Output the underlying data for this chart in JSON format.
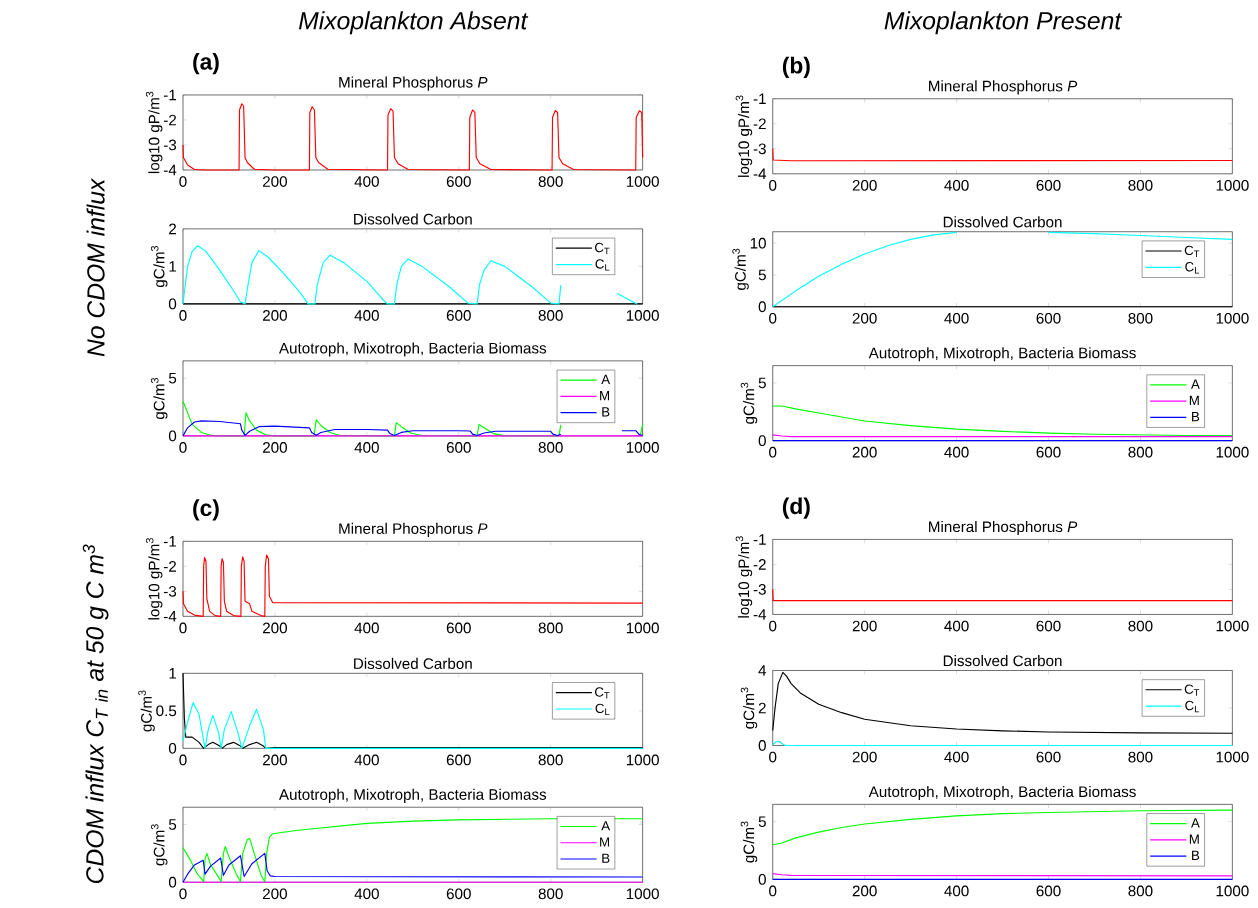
{
  "chart_data": [
    {
      "type": "line",
      "title": "Mineral Phosphorus *P*",
      "ylabel": "log10 gP/m$^{3}$",
      "xlim": [
        0,
        1000
      ],
      "xticks": [
        0,
        200,
        400,
        600,
        800,
        1000
      ],
      "ylim": [
        -4,
        -1
      ],
      "yticks": [
        -4,
        -3,
        -2,
        -1
      ],
      "annotations": [
        "Mixoplankton Absent",
        "\\mathit{No\\ CDOM\\ influx}",
        "(a)"
      ],
      "series": [
        {
          "color": "#ff0000",
          "x": [
            0,
            1,
            10,
            25,
            50,
            122,
            123,
            128,
            132,
            135,
            140,
            155,
            200,
            275,
            276,
            281,
            286,
            289,
            295,
            315,
            445,
            446,
            452,
            457,
            460,
            468,
            490,
            623,
            624,
            630,
            635,
            638,
            646,
            670,
            803,
            804,
            810,
            815,
            818,
            826,
            850,
            985,
            986,
            993,
            998,
            1000
          ],
          "values": [
            -3.0,
            -3.5,
            -3.8,
            -3.98,
            -4,
            -4,
            -1.6,
            -1.35,
            -1.45,
            -3.5,
            -3.7,
            -3.97,
            -4,
            -4,
            -1.7,
            -1.47,
            -1.6,
            -3.5,
            -3.7,
            -3.97,
            -4,
            -1.8,
            -1.55,
            -1.65,
            -3.5,
            -3.75,
            -3.98,
            -4,
            -1.9,
            -1.6,
            -1.7,
            -3.5,
            -3.75,
            -3.98,
            -4,
            -1.9,
            -1.62,
            -1.7,
            -3.5,
            -3.75,
            -3.98,
            -4,
            -1.9,
            -1.63,
            -1.7,
            -3.5
          ]
        }
      ]
    },
    {
      "type": "line",
      "title": "Dissolved Carbon",
      "ylabel": "gC/m$^{3}$",
      "xlim": [
        0,
        1000
      ],
      "xticks": [
        0,
        200,
        400,
        600,
        800,
        1000
      ],
      "ylim": [
        0,
        2
      ],
      "yticks": [
        0,
        1,
        2
      ],
      "legend": "top right",
      "series": [
        {
          "name": "C$_{T}$",
          "color": "#000000",
          "x": [
            0,
            1000
          ],
          "values": [
            0,
            0
          ]
        },
        {
          "name": "C$_{L}$",
          "color": "#00ffff",
          "x": [
            0,
            10,
            20,
            32,
            50,
            80,
            110,
            125,
            135,
            140,
            150,
            165,
            185,
            220,
            255,
            272,
            287,
            292,
            305,
            320,
            350,
            400,
            440,
            445,
            460,
            465,
            475,
            490,
            520,
            580,
            620,
            640,
            645,
            655,
            670,
            700,
            760,
            800,
            818,
            822,
            900,
            945,
            960,
            975,
            988
          ],
          "values": [
            0,
            1.0,
            1.4,
            1.55,
            1.4,
            0.9,
            0.35,
            0.05,
            0,
            0.4,
            1.1,
            1.42,
            1.25,
            0.8,
            0.3,
            0,
            0,
            0.5,
            1.1,
            1.3,
            1.1,
            0.6,
            0.05,
            0,
            0,
            0.5,
            1.0,
            1.2,
            1.0,
            0.45,
            0.02,
            0,
            0.5,
            0.9,
            1.15,
            1.0,
            0.45,
            0.02,
            0,
            0.5,
            null,
            0.28,
            0.18,
            0.08,
            0
          ]
        }
      ]
    },
    {
      "type": "line",
      "title": "Autotroph, Mixotroph, Bacteria Biomass",
      "ylabel": "gC/m$^{3}$",
      "xlim": [
        0,
        1000
      ],
      "xticks": [
        0,
        200,
        400,
        600,
        800,
        1000
      ],
      "ylim": [
        0,
        6.5
      ],
      "yticks": [
        0,
        5
      ],
      "legend": "top right",
      "series": [
        {
          "name": "A",
          "color": "#00ff00",
          "x": [
            0,
            10,
            20,
            40,
            60,
            100,
            133,
            137,
            145,
            160,
            180,
            200,
            285,
            290,
            300,
            320,
            340,
            460,
            464,
            475,
            495,
            520,
            640,
            644,
            655,
            675,
            700,
            818,
            822,
            900,
            995,
            1000
          ],
          "values": [
            3.0,
            2.0,
            1.0,
            0.3,
            0.05,
            0,
            0,
            2.0,
            1.3,
            0.5,
            0.1,
            0,
            0,
            1.4,
            0.9,
            0.3,
            0.05,
            0,
            1.15,
            0.8,
            0.25,
            0.03,
            0,
            1.0,
            0.7,
            0.2,
            0.02,
            0,
            0.95,
            null,
            0.05,
            1.0
          ]
        },
        {
          "name": "M",
          "color": "#ff00ff",
          "x": [
            0,
            1000
          ],
          "values": [
            0,
            0
          ]
        },
        {
          "name": "B",
          "color": "#0000ff",
          "x": [
            0,
            10,
            25,
            40,
            80,
            125,
            128,
            135,
            145,
            165,
            200,
            275,
            280,
            290,
            300,
            330,
            400,
            445,
            450,
            460,
            475,
            500,
            600,
            625,
            630,
            640,
            655,
            680,
            800,
            805,
            815,
            822,
            900,
            955,
            985,
            993,
            1000
          ],
          "values": [
            0,
            0.7,
            1.2,
            1.3,
            1.25,
            1.05,
            0.5,
            0.05,
            0.4,
            0.8,
            0.85,
            0.7,
            0.3,
            0.05,
            0.3,
            0.55,
            0.55,
            0.5,
            0.2,
            0.03,
            0.3,
            0.45,
            0.45,
            0.42,
            0.15,
            0.03,
            0.25,
            0.4,
            0.4,
            0.15,
            0.03,
            0.15,
            null,
            0.45,
            0.45,
            0.1,
            0.05
          ]
        }
      ]
    },
    {
      "type": "line",
      "title": "Mineral Phosphorus *P*",
      "ylabel": "log10 gP/m$^{3}$",
      "xlim": [
        0,
        1000
      ],
      "xticks": [
        0,
        200,
        400,
        600,
        800,
        1000
      ],
      "ylim": [
        -4,
        -1
      ],
      "yticks": [
        -4,
        -3,
        -2,
        -1
      ],
      "annotations": [
        "Mixoplankton Present",
        "(b)"
      ],
      "series": [
        {
          "color": "#ff0000",
          "x": [
            0,
            1,
            40,
            1000
          ],
          "values": [
            -3.0,
            -3.45,
            -3.48,
            -3.47
          ]
        }
      ]
    },
    {
      "type": "line",
      "title": "Dissolved Carbon",
      "ylabel": "gC/m$^{3}$",
      "xlim": [
        0,
        1000
      ],
      "xticks": [
        0,
        200,
        400,
        600,
        800,
        1000
      ],
      "ylim": [
        0,
        11.8
      ],
      "yticks": [
        0,
        5,
        10
      ],
      "legend": "top right",
      "series": [
        {
          "name": "C$_{T}$",
          "color": "#000000",
          "x": [
            0,
            1000
          ],
          "values": [
            0,
            0
          ]
        },
        {
          "name": "C$_{L}$",
          "color": "#00ffff",
          "x": [
            0,
            50,
            100,
            150,
            200,
            250,
            300,
            350,
            400,
            450,
            550,
            600,
            700,
            800,
            900,
            1000
          ],
          "values": [
            0,
            2.5,
            4.8,
            6.7,
            8.3,
            9.6,
            10.6,
            11.3,
            11.7,
            null,
            null,
            11.7,
            11.5,
            11.2,
            10.9,
            10.6
          ]
        }
      ]
    },
    {
      "type": "line",
      "title": "Autotroph, Mixotroph, Bacteria Biomass",
      "ylabel": "gC/m$^{3}$",
      "xlim": [
        0,
        1000
      ],
      "xticks": [
        0,
        200,
        400,
        600,
        800,
        1000
      ],
      "ylim": [
        0,
        6.5
      ],
      "yticks": [
        0,
        5
      ],
      "legend": "top right",
      "series": [
        {
          "name": "A",
          "color": "#00ff00",
          "x": [
            0,
            20,
            50,
            100,
            200,
            300,
            400,
            500,
            600,
            700,
            800,
            900,
            1000
          ],
          "values": [
            3.0,
            3.0,
            2.75,
            2.4,
            1.7,
            1.3,
            1.0,
            0.8,
            0.65,
            0.55,
            0.5,
            0.45,
            0.45
          ]
        },
        {
          "name": "M",
          "color": "#ff00ff",
          "x": [
            0,
            20,
            40,
            1000
          ],
          "values": [
            0.5,
            0.4,
            0.35,
            0.35
          ]
        },
        {
          "name": "B",
          "color": "#0000ff",
          "x": [
            0,
            1000
          ],
          "values": [
            0,
            0
          ]
        }
      ]
    },
    {
      "type": "line",
      "title": "Mineral Phosphorus *P*",
      "ylabel": "log10 gP/m$^{3}$",
      "xlim": [
        0,
        1000
      ],
      "xticks": [
        0,
        200,
        400,
        600,
        800,
        1000
      ],
      "ylim": [
        -4,
        -1
      ],
      "yticks": [
        -4,
        -3,
        -2,
        -1
      ],
      "annotations": [
        "\\mathit{CDOM\\ influx\\ C_{T\\ in}\\ at\\ 50\\ g\\ C\\ m^{3}}",
        "(c)"
      ],
      "series": [
        {
          "color": "#ff0000",
          "x": [
            0,
            1,
            10,
            25,
            44,
            45,
            47,
            50,
            52,
            58,
            70,
            82,
            83,
            85,
            88,
            90,
            95,
            110,
            126,
            127,
            130,
            133,
            135,
            145,
            150,
            170,
            178,
            179,
            182,
            186,
            188,
            195,
            1000
          ],
          "values": [
            -3.0,
            -3.5,
            -3.8,
            -3.95,
            -4,
            -2.0,
            -1.65,
            -1.8,
            -3.3,
            -3.8,
            -3.97,
            -4,
            -2.0,
            -1.7,
            -1.85,
            -3.4,
            -3.8,
            -3.97,
            -4,
            -2.0,
            -1.62,
            -1.8,
            -3.4,
            -3.5,
            -3.8,
            -3.97,
            -4,
            -2.0,
            -1.55,
            -1.7,
            -3.2,
            -3.45,
            -3.47
          ]
        }
      ]
    },
    {
      "type": "line",
      "title": "Dissolved Carbon",
      "ylabel": "gC/m$^{3}$",
      "xlim": [
        0,
        1000
      ],
      "xticks": [
        0,
        200,
        400,
        600,
        800,
        1000
      ],
      "ylim": [
        0,
        1
      ],
      "yticks": [
        0,
        0.5,
        1
      ],
      "legend": "top right",
      "series": [
        {
          "name": "C$_{T}$",
          "color": "#000000",
          "x": [
            0,
            3,
            6,
            20,
            35,
            45,
            55,
            65,
            80,
            85,
            95,
            110,
            125,
            130,
            145,
            160,
            175,
            180,
            200,
            1000
          ],
          "values": [
            1.0,
            0.4,
            0.15,
            0.15,
            0.08,
            0,
            0.05,
            0.08,
            0.03,
            0,
            0.05,
            0.08,
            0.03,
            0,
            0.05,
            0.08,
            0.03,
            0,
            0.01,
            0.01
          ]
        },
        {
          "name": "C$_{L}$",
          "color": "#00ffff",
          "x": [
            0,
            10,
            22,
            35,
            45,
            48,
            55,
            65,
            78,
            83,
            90,
            105,
            120,
            128,
            145,
            160,
            175,
            180,
            1000
          ],
          "values": [
            0.1,
            0.35,
            0.61,
            0.45,
            0.1,
            0,
            0.25,
            0.44,
            0.2,
            0,
            0.25,
            0.49,
            0.2,
            0,
            0.3,
            0.52,
            0.25,
            0,
            0
          ]
        }
      ]
    },
    {
      "type": "line",
      "title": "Autotroph, Mixotroph, Bacteria Biomass",
      "ylabel": "gC/m$^{3}$",
      "xlim": [
        0,
        1000
      ],
      "xticks": [
        0,
        200,
        400,
        600,
        800,
        1000
      ],
      "ylim": [
        0,
        6.5
      ],
      "yticks": [
        0,
        5
      ],
      "legend": "top right",
      "series": [
        {
          "name": "A",
          "color": "#00ff00",
          "x": [
            0,
            15,
            30,
            45,
            48,
            52,
            60,
            75,
            83,
            88,
            92,
            100,
            115,
            125,
            130,
            140,
            145,
            155,
            170,
            178,
            182,
            188,
            195,
            250,
            300,
            400,
            500,
            600,
            800,
            1000
          ],
          "values": [
            3.0,
            2.0,
            0.8,
            0.05,
            2.0,
            2.5,
            1.5,
            0.6,
            0.05,
            2.5,
            3.1,
            2.2,
            0.8,
            0.05,
            2.5,
            3.7,
            3.8,
            2.5,
            0.6,
            0.05,
            2.5,
            3.9,
            4.2,
            4.5,
            4.7,
            5.1,
            5.3,
            5.4,
            5.5,
            5.5
          ]
        },
        {
          "name": "M",
          "color": "#ff00ff",
          "x": [
            0,
            1000
          ],
          "values": [
            0,
            0
          ]
        },
        {
          "name": "B",
          "color": "#0000ff",
          "x": [
            0,
            10,
            25,
            44,
            48,
            60,
            82,
            88,
            100,
            125,
            133,
            150,
            178,
            183,
            190,
            200,
            1000
          ],
          "values": [
            0,
            0.7,
            1.5,
            1.9,
            0.7,
            1.4,
            2.1,
            0.6,
            1.5,
            2.3,
            0.5,
            1.6,
            2.5,
            1.0,
            0.55,
            0.5,
            0.45
          ]
        }
      ]
    },
    {
      "type": "line",
      "title": "Mineral Phosphorus *P*",
      "ylabel": "log10 gP/m$^{3}$",
      "xlim": [
        0,
        1000
      ],
      "xticks": [
        0,
        200,
        400,
        600,
        800,
        1000
      ],
      "ylim": [
        -4,
        -1
      ],
      "yticks": [
        -4,
        -3,
        -2,
        -1
      ],
      "annotations": [
        "(d)"
      ],
      "series": [
        {
          "color": "#ff0000",
          "x": [
            0,
            1,
            1000
          ],
          "values": [
            -3.0,
            -3.45,
            -3.45
          ]
        }
      ]
    },
    {
      "type": "line",
      "title": "Dissolved Carbon",
      "ylabel": "gC/m$^{3}$",
      "xlim": [
        0,
        1000
      ],
      "xticks": [
        0,
        200,
        400,
        600,
        800,
        1000
      ],
      "ylim": [
        0,
        4
      ],
      "yticks": [
        0,
        2,
        4
      ],
      "legend": "top right",
      "series": [
        {
          "name": "C$_{T}$",
          "color": "#000000",
          "x": [
            0,
            5,
            12,
            22,
            30,
            40,
            60,
            100,
            150,
            200,
            300,
            400,
            500,
            600,
            800,
            1000
          ],
          "values": [
            0.8,
            2.0,
            3.3,
            3.9,
            3.7,
            3.3,
            2.8,
            2.2,
            1.75,
            1.4,
            1.05,
            0.88,
            0.78,
            0.72,
            0.67,
            0.65
          ]
        },
        {
          "name": "C$_{L}$",
          "color": "#00ffff",
          "x": [
            0,
            8,
            15,
            25,
            30,
            1000
          ],
          "values": [
            0.05,
            0.2,
            0.2,
            0.02,
            0,
            0
          ]
        }
      ]
    },
    {
      "type": "line",
      "title": "Autotroph, Mixotroph, Bacteria Biomass",
      "ylabel": "gC/m$^{3}$",
      "xlim": [
        0,
        1000
      ],
      "xticks": [
        0,
        200,
        400,
        600,
        800,
        1000
      ],
      "ylim": [
        0,
        6.5
      ],
      "yticks": [
        0,
        5
      ],
      "legend": "top right",
      "series": [
        {
          "name": "A",
          "color": "#00ff00",
          "x": [
            0,
            20,
            50,
            100,
            150,
            200,
            300,
            400,
            500,
            600,
            800,
            1000
          ],
          "values": [
            3.0,
            3.15,
            3.6,
            4.1,
            4.5,
            4.8,
            5.2,
            5.5,
            5.7,
            5.8,
            5.95,
            6.0
          ]
        },
        {
          "name": "M",
          "color": "#ff00ff",
          "x": [
            0,
            20,
            40,
            1000
          ],
          "values": [
            0.5,
            0.4,
            0.35,
            0.3
          ]
        },
        {
          "name": "B",
          "color": "#0000ff",
          "x": [
            0,
            1000
          ],
          "values": [
            0,
            0
          ]
        }
      ]
    }
  ]
}
